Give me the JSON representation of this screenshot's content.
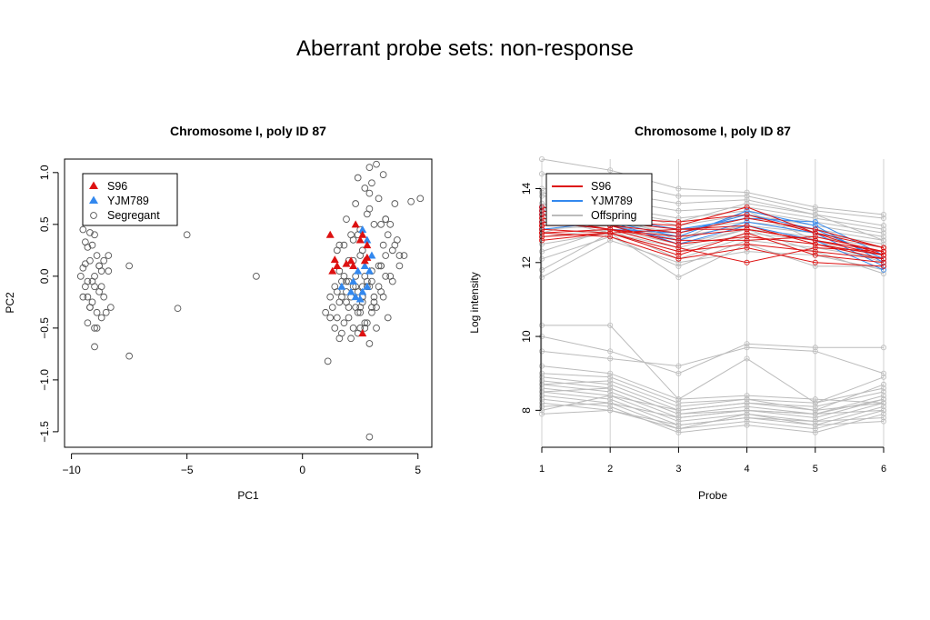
{
  "page_title": "Aberrant probe sets: non-response",
  "chart_data": [
    {
      "type": "scatter",
      "title": "Chromosome I, poly ID 87",
      "xlabel": "PC1",
      "ylabel": "PC2",
      "xlim": [
        -10.3,
        5.6
      ],
      "ylim": [
        -1.65,
        1.13
      ],
      "xticks": [
        -10,
        -5,
        0,
        5
      ],
      "yticks": [
        -1.5,
        -1.0,
        -0.5,
        0.0,
        0.5,
        1.0
      ],
      "xtick_labels": [
        "−10",
        "−5",
        "0",
        "5"
      ],
      "ytick_labels": [
        "−1.5",
        "−1.0",
        "−0.5",
        "0.0",
        "0.5",
        "1.0"
      ],
      "grid": false,
      "legend_position": "top-left",
      "legend": [
        {
          "name": "S96",
          "marker": "filled-triangle",
          "color": "#dd1111"
        },
        {
          "name": "YJM789",
          "marker": "filled-triangle",
          "color": "#3388ee"
        },
        {
          "name": "Segregant",
          "marker": "open-circle",
          "color": "#555555"
        }
      ],
      "series": [
        {
          "name": "S96",
          "color": "#dd1111",
          "x": [
            1.2,
            2.3,
            2.6,
            2.8,
            2.5,
            1.9,
            2.1,
            1.5,
            1.4,
            2.7,
            2.8,
            1.3,
            2.2,
            2.6
          ],
          "y": [
            0.4,
            0.5,
            0.4,
            0.3,
            0.35,
            0.12,
            0.15,
            0.1,
            0.16,
            0.15,
            0.18,
            0.05,
            0.1,
            -0.55
          ]
        },
        {
          "name": "YJM789",
          "color": "#3388ee",
          "x": [
            2.6,
            2.8,
            3.0,
            2.7,
            2.4,
            2.2,
            1.7,
            2.9,
            2.6,
            2.3,
            2.8,
            2.1,
            2.5
          ],
          "y": [
            0.45,
            0.35,
            0.2,
            0.1,
            0.05,
            -0.05,
            -0.1,
            0.05,
            -0.15,
            -0.2,
            -0.1,
            -0.15,
            -0.22
          ]
        },
        {
          "name": "Segregant",
          "color": "#555555",
          "x": [
            -9.5,
            -9.2,
            -9.4,
            -9.1,
            -9.3,
            -9.0,
            -8.9,
            -8.8,
            -8.7,
            -9.2,
            -9.5,
            -9.4,
            -9.6,
            -9.3,
            -9.0,
            -8.8,
            -8.6,
            -9.1,
            -9.2,
            -8.9,
            -8.7,
            -9.3,
            -8.5,
            -8.9,
            -9.4,
            -8.4,
            -9.5,
            -9.2,
            -8.8,
            -9.1,
            -9.0,
            -8.6,
            -8.4,
            -9.3,
            -9.0,
            -8.7,
            -7.5,
            -7.5,
            -8.3,
            -9.0,
            -5.0,
            -5.4,
            -2.0,
            1.5,
            2.1,
            1.6,
            2.9,
            2.4,
            1.9,
            2.3,
            3.0,
            2.7,
            3.2,
            3.5,
            3.3,
            2.8,
            2.5,
            3.4,
            2.2,
            1.8,
            2.6,
            3.1,
            3.6,
            2.9,
            2.4,
            2.0,
            3.8,
            4.0,
            3.7,
            3.5,
            3.9,
            4.2,
            3.3,
            2.7,
            3.0,
            2.8,
            3.6,
            1.4,
            1.7,
            2.3,
            1.2,
            1.6,
            2.0,
            2.5,
            3.1,
            3.4,
            2.6,
            1.9,
            1.3,
            1.0,
            1.5,
            1.8,
            2.2,
            2.4,
            1.6,
            2.9,
            3.2,
            2.0,
            1.4,
            1.7,
            2.1,
            2.7,
            3.0,
            2.3,
            1.1,
            1.9,
            2.6,
            2.4,
            3.3,
            3.9,
            4.2,
            4.4,
            4.7,
            5.1,
            4.0,
            3.6,
            3.4,
            3.8,
            2.9,
            3.5,
            3.1,
            3.7,
            2.8,
            2.5,
            2.2,
            1.9,
            2.6,
            3.0,
            2.4,
            1.5,
            1.7,
            2.0,
            2.8,
            2.1,
            2.5,
            1.2,
            3.2,
            2.7,
            2.9,
            3.4,
            4.1,
            3.6,
            2.6,
            1.8,
            2.3,
            3.0,
            2.2,
            1.6,
            2.5,
            2.9
          ],
          "y": [
            0.45,
            0.42,
            0.33,
            0.3,
            0.28,
            0.4,
            0.2,
            0.1,
            0.05,
            0.15,
            0.08,
            0.12,
            0.0,
            -0.05,
            -0.1,
            -0.15,
            -0.2,
            -0.25,
            -0.3,
            -0.35,
            -0.4,
            -0.45,
            -0.35,
            -0.5,
            -0.1,
            0.05,
            -0.2,
            -0.3,
            0.1,
            -0.05,
            -0.68,
            0.15,
            0.2,
            -0.2,
            0.0,
            -0.1,
            0.1,
            -0.77,
            -0.3,
            -0.5,
            0.4,
            -0.31,
            0.0,
            0.25,
            0.4,
            0.3,
            1.05,
            0.95,
            0.55,
            0.7,
            0.9,
            0.85,
            1.08,
            0.98,
            0.75,
            0.6,
            0.45,
            0.5,
            0.35,
            0.3,
            0.25,
            0.5,
            0.55,
            0.65,
            0.4,
            0.15,
            0.5,
            0.7,
            0.4,
            0.3,
            0.25,
            0.2,
            0.1,
            0.0,
            0.05,
            -0.05,
            0.0,
            -0.1,
            -0.05,
            0.0,
            -0.2,
            -0.25,
            -0.3,
            -0.35,
            -0.2,
            -0.15,
            -0.1,
            -0.05,
            -0.3,
            -0.35,
            -0.4,
            -0.45,
            -0.5,
            -0.55,
            -0.6,
            -0.65,
            -0.5,
            -0.4,
            -0.5,
            -0.55,
            -0.6,
            -0.45,
            -0.35,
            -0.3,
            -0.82,
            -0.25,
            -0.2,
            -0.15,
            -0.1,
            -0.05,
            0.1,
            0.2,
            0.72,
            0.75,
            0.3,
            0.2,
            0.1,
            0.0,
            -0.1,
            -0.2,
            -0.25,
            -0.4,
            -0.45,
            -0.5,
            -0.1,
            -0.15,
            -0.25,
            -0.3,
            -0.35,
            -0.15,
            -0.2,
            -0.05,
            -0.1,
            -0.2,
            -0.3,
            -0.4,
            -0.3,
            -0.5,
            -1.55,
            0.1,
            0.35,
            0.55,
            -0.2,
            0.0,
            -0.1,
            -0.05,
            0.15,
            0.05,
            0.2,
            0.8
          ]
        }
      ]
    },
    {
      "type": "line",
      "title": "Chromosome I, poly ID 87",
      "xlabel": "Probe",
      "ylabel": "Log intensity",
      "x": [
        1,
        2,
        3,
        4,
        5,
        6
      ],
      "xlim": [
        1,
        6
      ],
      "ylim": [
        7.0,
        14.8
      ],
      "yticks": [
        8,
        10,
        12,
        14
      ],
      "ytick_labels": [
        "8",
        "10",
        "12",
        "14"
      ],
      "xtick_labels": [
        "1",
        "2",
        "3",
        "4",
        "5",
        "6"
      ],
      "grid": "vertical lines at each probe",
      "legend_position": "top-left",
      "legend": [
        {
          "name": "S96",
          "color": "#dd1111"
        },
        {
          "name": "YJM789",
          "color": "#3388ee"
        },
        {
          "name": "Offspring",
          "color": "#bbbbbb"
        }
      ],
      "series": [
        {
          "name": "Offspring",
          "color": "#bbbbbb",
          "lines": [
            [
              14.8,
              14.5,
              14.0,
              13.9,
              13.5,
              13.3
            ],
            [
              14.4,
              14.2,
              13.8,
              13.8,
              13.4,
              13.2
            ],
            [
              14.0,
              13.9,
              13.6,
              13.7,
              13.3,
              13.0
            ],
            [
              13.8,
              13.7,
              13.4,
              13.5,
              13.2,
              12.9
            ],
            [
              13.5,
              13.5,
              13.2,
              13.4,
              13.1,
              12.8
            ],
            [
              13.3,
              13.4,
              13.0,
              13.3,
              13.0,
              12.7
            ],
            [
              13.1,
              13.2,
              12.9,
              13.1,
              12.9,
              12.6
            ],
            [
              12.9,
              13.0,
              12.7,
              13.0,
              12.8,
              12.5
            ],
            [
              12.7,
              12.9,
              12.5,
              12.9,
              12.7,
              12.4
            ],
            [
              12.5,
              12.8,
              12.3,
              12.8,
              12.6,
              12.3
            ],
            [
              12.3,
              12.9,
              12.1,
              12.7,
              12.5,
              12.2
            ],
            [
              12.1,
              12.7,
              11.9,
              12.6,
              12.4,
              12.1
            ],
            [
              11.8,
              12.8,
              11.6,
              12.5,
              11.9,
              11.9
            ],
            [
              11.6,
              12.6,
              12.0,
              12.3,
              12.2,
              11.8
            ],
            [
              13.9,
              13.4,
              13.1,
              13.6,
              13.3,
              12.6
            ],
            [
              13.6,
              13.1,
              12.8,
              13.2,
              12.9,
              12.4
            ],
            [
              12.8,
              13.3,
              12.6,
              13.4,
              12.6,
              12.0
            ],
            [
              13.2,
              12.8,
              12.4,
              12.9,
              12.3,
              11.7
            ],
            [
              10.3,
              10.3,
              8.3,
              8.4,
              8.3,
              8.2
            ],
            [
              10.0,
              9.6,
              9.0,
              9.8,
              9.7,
              9.7
            ],
            [
              9.6,
              9.4,
              9.2,
              9.7,
              9.6,
              9.0
            ],
            [
              9.2,
              9.0,
              8.3,
              9.4,
              8.2,
              8.9
            ],
            [
              9.0,
              8.9,
              8.2,
              8.3,
              8.0,
              8.7
            ],
            [
              8.9,
              8.7,
              8.0,
              8.2,
              8.1,
              8.5
            ],
            [
              8.8,
              8.6,
              7.9,
              8.1,
              7.9,
              8.4
            ],
            [
              8.7,
              8.5,
              7.8,
              8.0,
              7.8,
              8.3
            ],
            [
              8.6,
              8.4,
              7.7,
              7.9,
              7.7,
              8.2
            ],
            [
              8.5,
              8.3,
              7.6,
              7.8,
              7.6,
              8.1
            ],
            [
              8.4,
              8.2,
              7.5,
              7.7,
              7.5,
              8.0
            ],
            [
              8.3,
              8.1,
              7.4,
              7.6,
              7.4,
              7.9
            ],
            [
              8.2,
              8.0,
              7.6,
              7.8,
              7.7,
              7.8
            ],
            [
              8.1,
              8.2,
              7.8,
              8.0,
              7.9,
              8.0
            ],
            [
              8.0,
              8.4,
              8.0,
              8.2,
              8.0,
              8.2
            ],
            [
              7.9,
              8.0,
              7.5,
              7.9,
              7.6,
              7.7
            ],
            [
              8.7,
              8.8,
              8.1,
              8.3,
              8.2,
              8.6
            ],
            [
              8.5,
              8.6,
              7.9,
              8.0,
              7.9,
              8.3
            ]
          ]
        },
        {
          "name": "YJM789",
          "color": "#3388ee",
          "lines": [
            [
              13.5,
              13.1,
              12.7,
              13.4,
              13.0,
              12.0
            ],
            [
              13.3,
              13.0,
              12.6,
              13.1,
              12.8,
              11.9
            ],
            [
              13.1,
              12.9,
              12.8,
              13.3,
              12.9,
              12.1
            ],
            [
              12.9,
              13.1,
              12.5,
              13.0,
              12.6,
              11.8
            ],
            [
              13.4,
              13.2,
              12.9,
              13.2,
              13.1,
              12.2
            ]
          ]
        },
        {
          "name": "S96",
          "color": "#dd1111",
          "lines": [
            [
              13.4,
              13.1,
              13.0,
              13.5,
              12.8,
              12.4
            ],
            [
              13.2,
              12.9,
              12.7,
              12.9,
              12.6,
              12.3
            ],
            [
              13.0,
              13.0,
              12.5,
              12.7,
              12.5,
              12.2
            ],
            [
              12.9,
              12.8,
              12.3,
              12.5,
              12.3,
              12.1
            ],
            [
              12.8,
              12.9,
              12.4,
              12.0,
              12.4,
              12.3
            ],
            [
              12.7,
              12.8,
              12.2,
              12.8,
              12.2,
              12.0
            ],
            [
              13.1,
              12.9,
              12.6,
              12.6,
              12.7,
              12.3
            ],
            [
              13.3,
              13.0,
              12.8,
              13.2,
              12.9,
              12.4
            ],
            [
              12.6,
              12.8,
              12.9,
              13.0,
              12.5,
              12.1
            ],
            [
              13.5,
              13.2,
              13.1,
              13.3,
              12.8,
              12.2
            ],
            [
              12.8,
              12.7,
              12.1,
              12.4,
              12.0,
              11.9
            ],
            [
              13.0,
              13.1,
              12.9,
              12.9,
              12.6,
              12.2
            ]
          ]
        }
      ]
    }
  ]
}
